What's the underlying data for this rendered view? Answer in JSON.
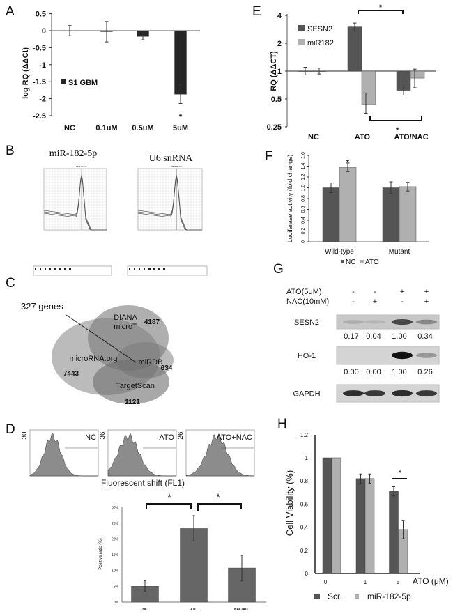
{
  "panels": {
    "A": {
      "letter": "A"
    },
    "B": {
      "letter": "B",
      "titles": [
        "miR-182-5p",
        "U6 snRNA"
      ],
      "plot_title": "Melt Curve"
    },
    "C": {
      "letter": "C",
      "callout": "327 genes",
      "sets": [
        {
          "name": "microRNA.org",
          "count": "7443"
        },
        {
          "name_line1": "DIANA",
          "name_line2": "microT",
          "count": "4187"
        },
        {
          "name": "miRDB",
          "count": "634"
        },
        {
          "name": "TargetScan",
          "count": "1121"
        }
      ]
    },
    "D": {
      "letter": "D",
      "histograms": [
        {
          "label": "NC",
          "ymax": "30"
        },
        {
          "label": "ATO",
          "ymax": "36"
        },
        {
          "label": "ATO+NAC",
          "ymax": "26"
        }
      ],
      "hist_xlabel": "Fluorescent shift (FL1)"
    },
    "E": {
      "letter": "E"
    },
    "F": {
      "letter": "F"
    },
    "G": {
      "letter": "G",
      "conditions": [
        {
          "label": "ATO(5μM)",
          "signs": [
            "-",
            "-",
            "+",
            "+"
          ]
        },
        {
          "label": "NAC(10mM)",
          "signs": [
            "-",
            "+",
            "-",
            "+"
          ]
        }
      ],
      "blots": [
        {
          "label": "SESN2",
          "quant": [
            "0.17",
            "0.04",
            "1.00",
            "0.34"
          ]
        },
        {
          "label": "HO-1",
          "quant": [
            "0.00",
            "0.00",
            "1.00",
            "0.26"
          ]
        },
        {
          "label": "GAPDH"
        }
      ]
    },
    "H": {
      "letter": "H"
    }
  },
  "colors": {
    "dark": "#555555",
    "light": "#b0b0b0",
    "black_bar": "#262626",
    "d_bar": "#666666"
  },
  "chart_data": [
    {
      "panel": "A",
      "type": "bar",
      "ylabel": "log RQ (ΔΔCt)",
      "categories": [
        "NC",
        "0.1uM",
        "0.5uM",
        "5uM"
      ],
      "series": [
        {
          "name": "S1 GBM",
          "values": [
            0,
            -0.03,
            -0.17,
            -1.87
          ],
          "err_low": [
            -0.15,
            -0.33,
            -0.27,
            -2.14
          ],
          "err_high": [
            0.15,
            0.27,
            -0.07,
            -1.6
          ]
        }
      ],
      "yticks": [
        "0.5",
        "0",
        "-0.5",
        "-1",
        "-1.5",
        "-2",
        "-2.5"
      ],
      "ylim": [
        -2.5,
        0.5
      ],
      "annotations": [
        "*"
      ],
      "legend": "left",
      "grid": false
    },
    {
      "panel": "E",
      "type": "bar",
      "ylabel": "RQ (ΔΔCT)",
      "yscale": "log2",
      "categories": [
        "NC",
        "ATO",
        "ATO/NAC"
      ],
      "series": [
        {
          "name": "SESN2",
          "values": [
            1,
            3.0,
            0.62
          ],
          "err_low": [
            0.91,
            2.7,
            0.55
          ],
          "err_high": [
            1.1,
            3.3,
            0.69
          ]
        },
        {
          "name": "miR182",
          "values": [
            1,
            0.44,
            0.84
          ],
          "err_low": [
            0.93,
            0.35,
            0.66
          ],
          "err_high": [
            1.08,
            0.58,
            1.05
          ]
        }
      ],
      "yticks": [
        "4",
        "2",
        "1",
        "0.5",
        "0.25"
      ],
      "ylim": [
        0.25,
        4
      ],
      "annotations": [
        "*",
        "*"
      ],
      "legend": "top-left",
      "grid": false
    },
    {
      "panel": "F",
      "type": "bar",
      "ylabel": "Luciferase activity (fold change)",
      "categories": [
        "Wild-type",
        "Mutant"
      ],
      "series": [
        {
          "name": "NC",
          "values": [
            1.0,
            1.0
          ],
          "err_low": [
            0.91,
            0.89
          ],
          "err_high": [
            1.09,
            1.11
          ]
        },
        {
          "name": "ATO",
          "values": [
            1.38,
            1.02
          ],
          "err_low": [
            1.3,
            0.94
          ],
          "err_high": [
            1.46,
            1.1
          ]
        }
      ],
      "yticks": [
        "0",
        "0.2",
        "0.4",
        "0.6",
        "0.8",
        "1.0",
        "1.2",
        "1.4",
        "1.6"
      ],
      "ylim": [
        0,
        1.6
      ],
      "annotations": [
        "*"
      ],
      "legend": "bottom",
      "grid": false
    },
    {
      "panel": "D",
      "type": "bar",
      "ylabel": "Positive ratio (%)",
      "categories": [
        "NC",
        "ATO",
        "NAC/ATO"
      ],
      "series": [
        {
          "values": [
            5.0,
            23.3,
            10.8
          ],
          "err_low": [
            3.5,
            19.4,
            6.7
          ],
          "err_high": [
            6.7,
            27.4,
            14.8
          ]
        }
      ],
      "yticks": [
        "0%",
        "5%",
        "10%",
        "15%",
        "20%",
        "25%",
        "30%"
      ],
      "ylim": [
        0,
        30
      ],
      "annotations": [
        "*",
        "*"
      ],
      "grid": false
    },
    {
      "panel": "H",
      "type": "bar",
      "ylabel": "Cell Viability (%)",
      "xlabel": "ATO (μM)",
      "categories": [
        "0",
        "1",
        "5"
      ],
      "series": [
        {
          "name": "Scr.",
          "values": [
            1.0,
            0.82,
            0.71
          ],
          "err_low": [
            1.0,
            0.78,
            0.67
          ],
          "err_high": [
            1.0,
            0.86,
            0.75
          ]
        },
        {
          "name": "miR-182-5p",
          "values": [
            1.0,
            0.82,
            0.38
          ],
          "err_low": [
            1.0,
            0.78,
            0.3
          ],
          "err_high": [
            1.0,
            0.86,
            0.46
          ]
        }
      ],
      "yticks": [
        "0",
        "0.2",
        "0.4",
        "0.6",
        "0.8",
        "1",
        "1.2"
      ],
      "ylim": [
        0,
        1.2
      ],
      "annotations": [
        "*"
      ],
      "legend": "bottom",
      "grid": false
    }
  ]
}
